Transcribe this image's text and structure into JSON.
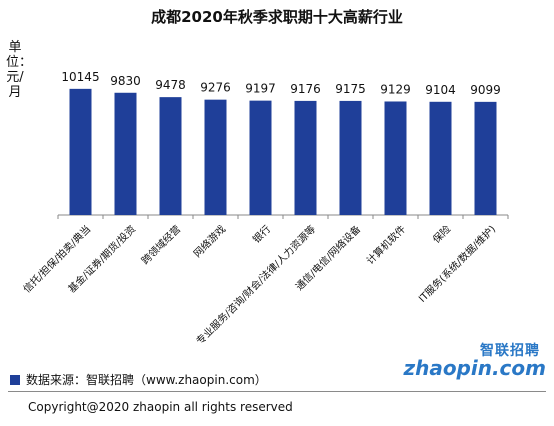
{
  "title": "成都2020年秋季求职期十大高薪行业",
  "unit_label": "单位：元/月",
  "legend": {
    "text": "数据来源：智联招聘（www.zhaopin.com）",
    "color": "#1f3f99"
  },
  "copyright": "Copyright@2020 zhaopin all rights reserved",
  "logo": {
    "top": "智联招聘",
    "main": "zhaopin.com"
  },
  "chart_data": {
    "type": "bar",
    "categories": [
      "信托/担保/拍卖/典当",
      "基金/证券/期货/投资",
      "跨领域经营",
      "网络游戏",
      "银行",
      "专业服务/咨询/财会/法律/人力资源等",
      "通信/电信/网络设备",
      "计算机软件",
      "保险",
      "IT服务(系统/数据/维护)"
    ],
    "values": [
      10145,
      9830,
      9478,
      9276,
      9197,
      9176,
      9175,
      9129,
      9104,
      9099
    ],
    "data_labels": [
      "10145",
      "9830",
      "9478",
      "9276",
      "9197",
      "9176",
      "9175",
      "9129",
      "9104",
      "9099"
    ],
    "ylim": [
      0,
      11500
    ],
    "bar_color": "#1f3f99",
    "grid": false,
    "legend_position": "bottom-left"
  }
}
